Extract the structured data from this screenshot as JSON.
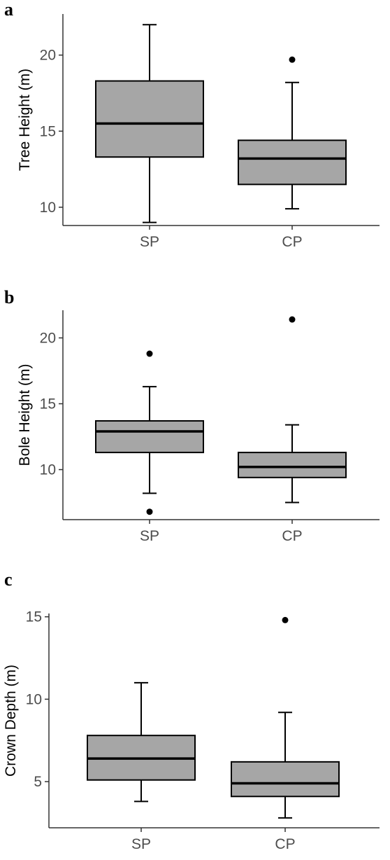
{
  "chart_data": [
    {
      "type": "boxplot",
      "panel_label": "a",
      "ylabel": "Tree Height (m)",
      "xlabel": "",
      "categories": [
        "SP",
        "CP"
      ],
      "yticks": [
        10,
        15,
        20
      ],
      "ylim": [
        8.8,
        22.7
      ],
      "boxes": [
        {
          "category": "SP",
          "whisker_low": 9.0,
          "q1": 13.3,
          "median": 15.5,
          "q3": 18.3,
          "whisker_high": 22.0,
          "outliers": []
        },
        {
          "category": "CP",
          "whisker_low": 9.9,
          "q1": 11.5,
          "median": 13.2,
          "q3": 14.4,
          "whisker_high": 18.2,
          "outliers": [
            19.7
          ]
        }
      ]
    },
    {
      "type": "boxplot",
      "panel_label": "b",
      "ylabel": "Bole Height (m)",
      "xlabel": "",
      "categories": [
        "SP",
        "CP"
      ],
      "yticks": [
        10,
        15,
        20
      ],
      "ylim": [
        6.2,
        22.1
      ],
      "boxes": [
        {
          "category": "SP",
          "whisker_low": 8.2,
          "q1": 11.3,
          "median": 12.9,
          "q3": 13.7,
          "whisker_high": 16.3,
          "outliers": [
            6.8,
            18.8
          ]
        },
        {
          "category": "CP",
          "whisker_low": 7.5,
          "q1": 9.4,
          "median": 10.2,
          "q3": 11.3,
          "whisker_high": 13.4,
          "outliers": [
            21.4
          ]
        }
      ]
    },
    {
      "type": "boxplot",
      "panel_label": "c",
      "ylabel": "Crown Depth (m)",
      "xlabel": "",
      "categories": [
        "SP",
        "CP"
      ],
      "yticks": [
        5,
        10,
        15
      ],
      "ylim": [
        2.2,
        15.2
      ],
      "boxes": [
        {
          "category": "SP",
          "whisker_low": 3.8,
          "q1": 5.1,
          "median": 6.4,
          "q3": 7.8,
          "whisker_high": 11.0,
          "outliers": []
        },
        {
          "category": "CP",
          "whisker_low": 2.8,
          "q1": 4.1,
          "median": 4.9,
          "q3": 6.2,
          "whisker_high": 9.2,
          "outliers": [
            14.8
          ]
        }
      ]
    }
  ]
}
